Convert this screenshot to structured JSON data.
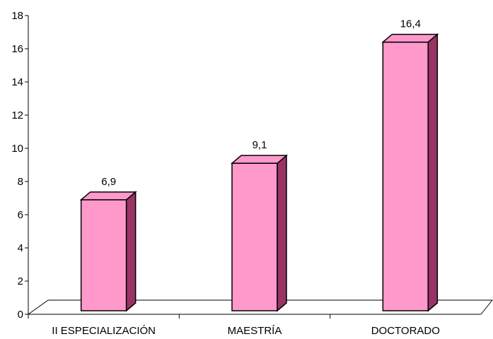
{
  "chart_data": {
    "type": "bar",
    "style": "3d-column",
    "categories": [
      "II ESPECIALIZACIÓN",
      "MAESTRÍA",
      "DOCTORADO"
    ],
    "values": [
      6.9,
      9.1,
      16.4
    ],
    "value_labels": [
      "6,9",
      "9,1",
      "16,4"
    ],
    "yticks": [
      0,
      2,
      4,
      6,
      8,
      10,
      12,
      14,
      16,
      18
    ],
    "ylim": [
      0,
      18
    ],
    "grid": false,
    "legend": "none",
    "colors": {
      "bar_front": "#ff99cc",
      "bar_side": "#993366",
      "bar_top": "#ff99cc",
      "outline": "#000000",
      "background": "#ffffff"
    }
  }
}
